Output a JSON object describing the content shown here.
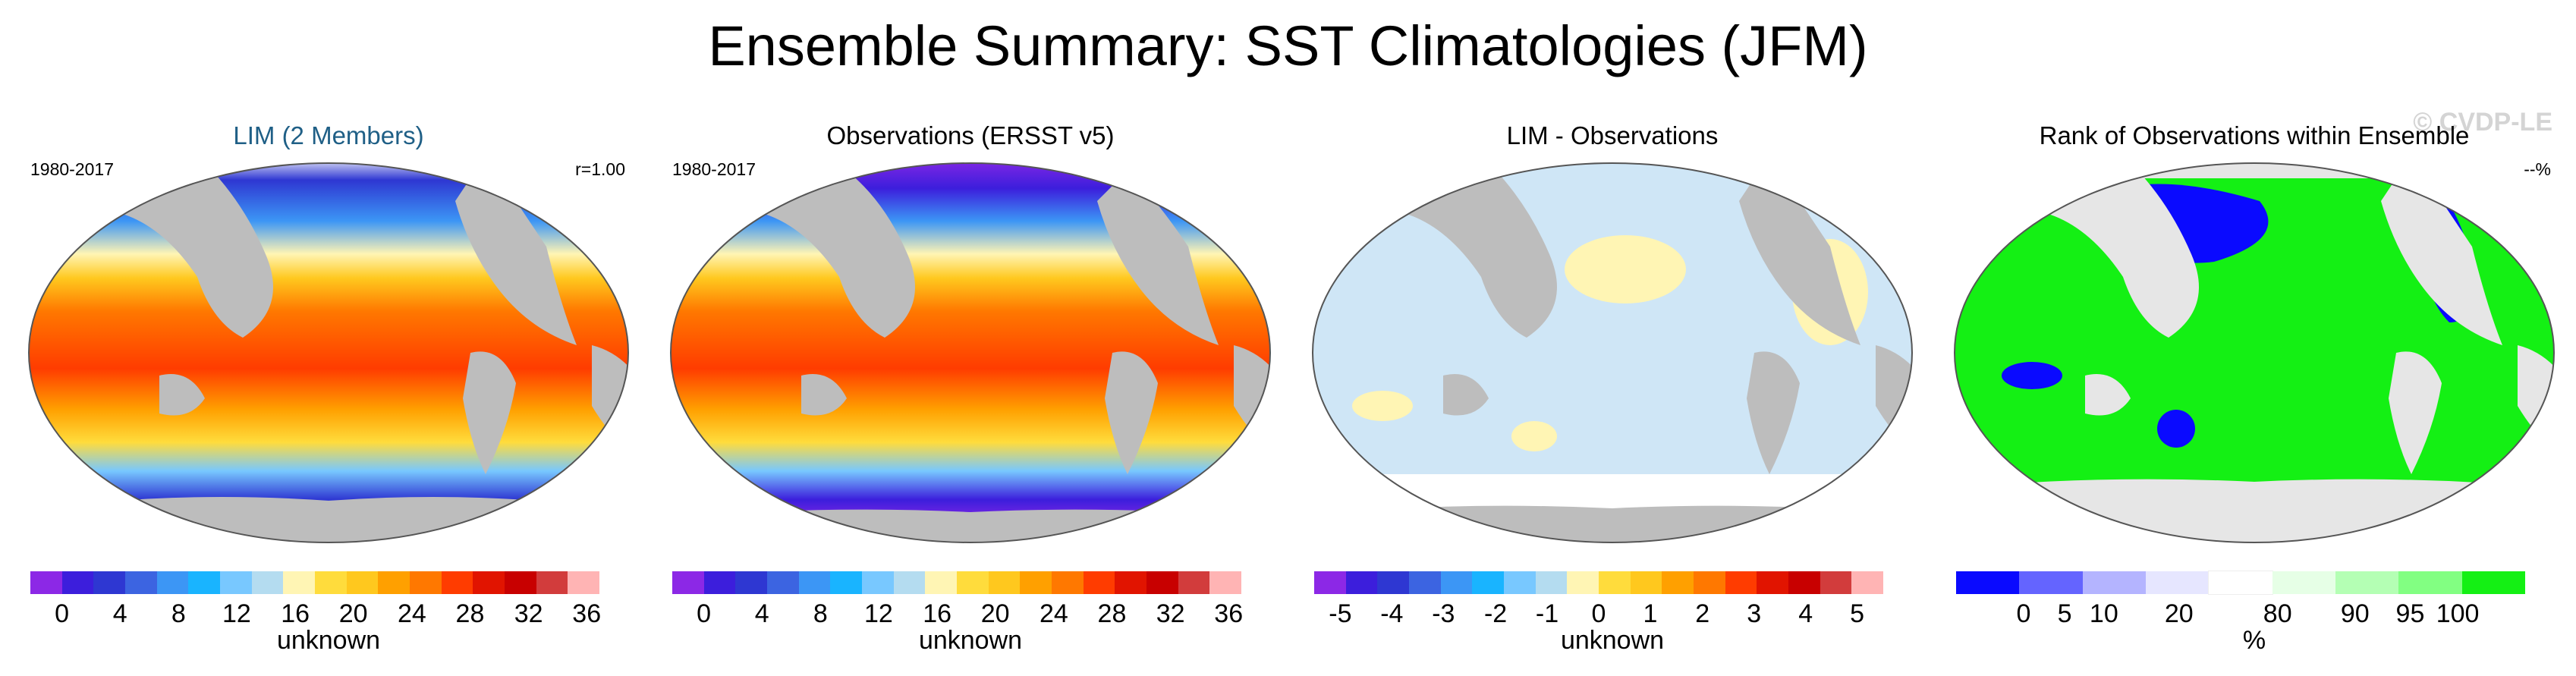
{
  "title": "Ensemble Summary: SST Climatologies (JFM)",
  "watermark": "© CVDP-LE",
  "panels": [
    {
      "title": "LIM (2 Members)",
      "left_label": "1980-2017",
      "right_label": "r=1.00",
      "colorbar": {
        "colors": [
          "#8c28e6",
          "#3c1edc",
          "#2e37d2",
          "#3c64e1",
          "#3c96f5",
          "#19b4ff",
          "#78c8ff",
          "#b4dcf0",
          "#fff5b4",
          "#ffdc3c",
          "#ffc81e",
          "#ffa000",
          "#ff7800",
          "#ff3c00",
          "#e11400",
          "#c80000",
          "#d23c3c",
          "#ffb4b4"
        ],
        "tick_labels": [
          "0",
          "4",
          "8",
          "12",
          "16",
          "20",
          "24",
          "28",
          "32",
          "36"
        ],
        "units": "unknown"
      }
    },
    {
      "title": "Observations (ERSST v5)",
      "left_label": "1980-2017",
      "colorbar": {
        "colors": [
          "#8c28e6",
          "#3c1edc",
          "#2e37d2",
          "#3c64e1",
          "#3c96f5",
          "#19b4ff",
          "#78c8ff",
          "#b4dcf0",
          "#fff5b4",
          "#ffdc3c",
          "#ffc81e",
          "#ffa000",
          "#ff7800",
          "#ff3c00",
          "#e11400",
          "#c80000",
          "#d23c3c",
          "#ffb4b4"
        ],
        "tick_labels": [
          "0",
          "4",
          "8",
          "12",
          "16",
          "20",
          "24",
          "28",
          "32",
          "36"
        ],
        "units": "unknown"
      }
    },
    {
      "title": "LIM - Observations",
      "colorbar": {
        "colors": [
          "#8c28e6",
          "#3c1edc",
          "#2e37d2",
          "#3c64e1",
          "#3c96f5",
          "#19b4ff",
          "#78c8ff",
          "#b4dcf0",
          "#fff5b4",
          "#ffdc3c",
          "#ffc81e",
          "#ffa000",
          "#ff7800",
          "#ff3c00",
          "#e11400",
          "#c80000",
          "#d23c3c",
          "#ffb4b4"
        ],
        "tick_labels": [
          "-5",
          "-4",
          "-3",
          "-2",
          "-1",
          "0",
          "1",
          "2",
          "3",
          "4",
          "5"
        ],
        "units": "unknown"
      }
    },
    {
      "title": "Rank of Observations within Ensemble",
      "right_label": "--%",
      "colorbar": {
        "colors": [
          "#0a0aff",
          "#6464ff",
          "#b4b4ff",
          "#e6e6ff",
          "#ffffff",
          "#e6ffe6",
          "#b4ffb4",
          "#82ff82",
          "#14f014"
        ],
        "tick_labels": [
          "0",
          "5",
          "10",
          "20",
          "80",
          "90",
          "95",
          "100"
        ],
        "units": "%"
      }
    }
  ]
}
